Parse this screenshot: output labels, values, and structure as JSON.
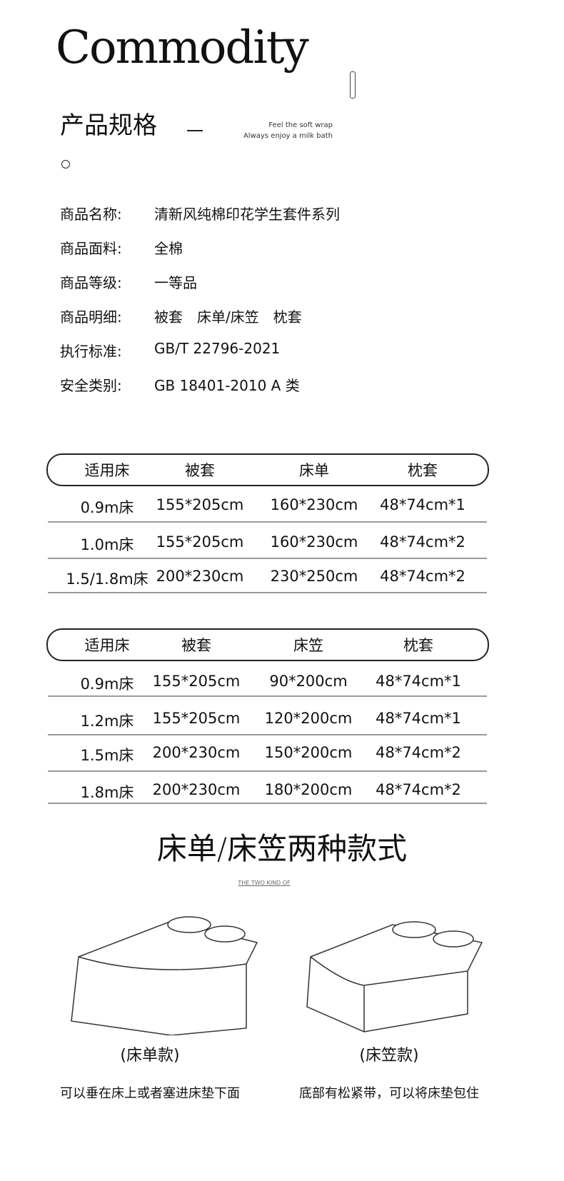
{
  "header": {
    "title": "Commodity",
    "subtitle": "产品规格",
    "tagline": [
      "Feel the soft wrap",
      "Always enjoy a milk bath"
    ]
  },
  "specs": [
    {
      "label": "商品名称:",
      "value": "清新风纯棉印花学生套件系列"
    },
    {
      "label": "商品面料:",
      "value": "全棉"
    },
    {
      "label": "商品等级:",
      "value": "一等品"
    },
    {
      "label": "商品明细:",
      "value": "被套　床单/床笠　枕套"
    },
    {
      "label": "执行标准:",
      "value": "GB/T 22796-2021"
    },
    {
      "label": "安全类别:",
      "value": "GB 18401-2010 A 类"
    }
  ],
  "table1": {
    "headers": [
      "适用床",
      "被套",
      "床单",
      "枕套"
    ],
    "rows": [
      [
        "0.9m床",
        "155*205cm",
        "160*230cm",
        "48*74cm*1"
      ],
      [
        "1.0m床",
        "155*205cm",
        "160*230cm",
        "48*74cm*2"
      ],
      [
        "1.5/1.8m床",
        "200*230cm",
        "230*250cm",
        "48*74cm*2"
      ]
    ]
  },
  "table2": {
    "headers": [
      "适用床",
      "被套",
      "床笠",
      "枕套"
    ],
    "rows": [
      [
        "0.9m床",
        "155*205cm",
        "90*200cm",
        "48*74cm*1"
      ],
      [
        "1.2m床",
        "155*205cm",
        "120*200cm",
        "48*74cm*1"
      ],
      [
        "1.5m床",
        "200*230cm",
        "150*200cm",
        "48*74cm*2"
      ],
      [
        "1.8m床",
        "200*230cm",
        "180*200cm",
        "48*74cm*2"
      ]
    ]
  },
  "styles": {
    "title": "床单/床笠两种款式",
    "subtitle": "THE TWO KIND OF",
    "items": [
      {
        "caption": "(床单款)",
        "desc": "可以垂在床上或者塞进床垫下面"
      },
      {
        "caption": "(床笠款)",
        "desc": "底部有松紧带，可以将床垫包住"
      }
    ]
  }
}
